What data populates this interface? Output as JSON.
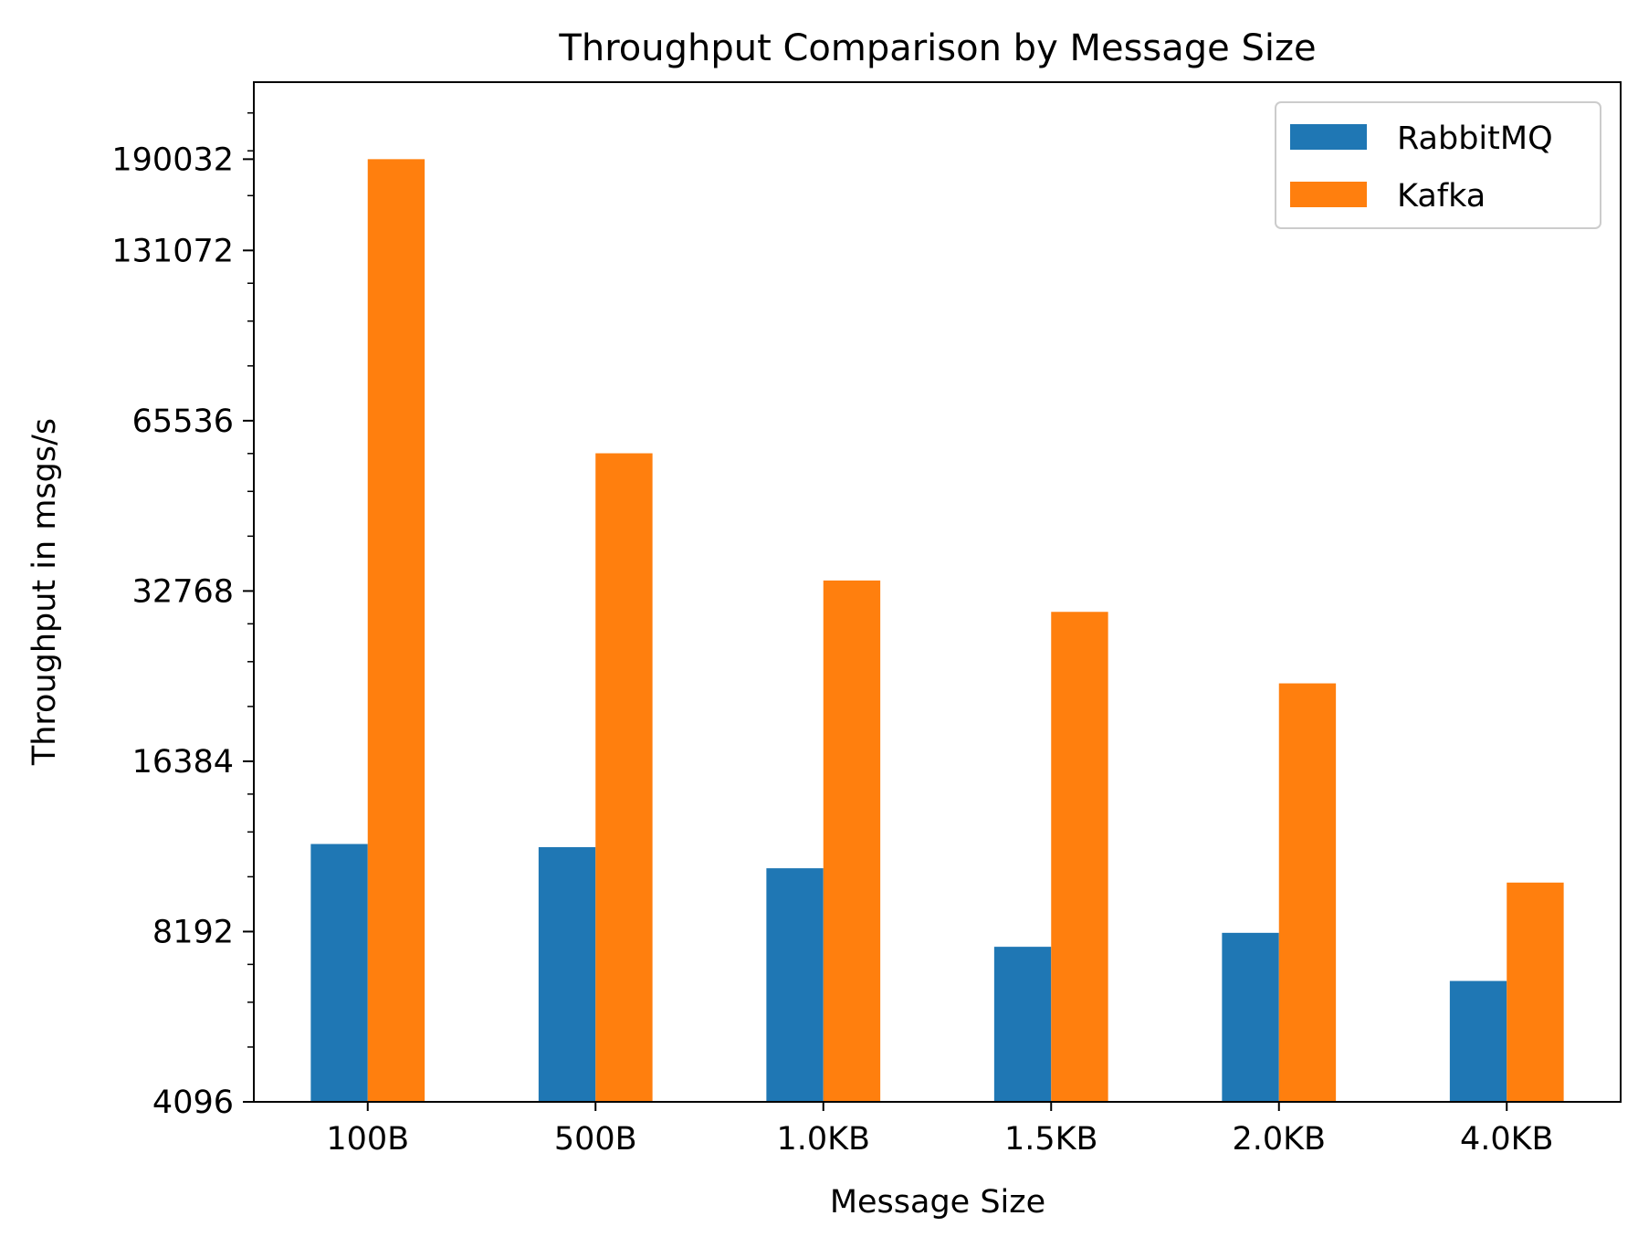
{
  "chart_data": {
    "type": "bar",
    "title": "Throughput Comparison by Message Size",
    "xlabel": "Message Size",
    "ylabel": "Throughput in msgs/s",
    "categories": [
      "100B",
      "500B",
      "1.0KB",
      "1.5KB",
      "2.0KB",
      "4.0KB"
    ],
    "series": [
      {
        "name": "RabbitMQ",
        "color": "#1f77b4",
        "values": [
          11700,
          11550,
          10600,
          7700,
          8150,
          6700
        ]
      },
      {
        "name": "Kafka",
        "color": "#ff7f0e",
        "values": [
          190032,
          57400,
          34200,
          30100,
          22500,
          10000
        ]
      }
    ],
    "yscale": "log2",
    "ylim": [
      4096,
      260000
    ],
    "yticks": [
      4096,
      8192,
      16384,
      32768,
      65536,
      131072,
      190032
    ],
    "ytick_labels": [
      "4096",
      "8192",
      "16384",
      "32768",
      "65536",
      "131072",
      "190032"
    ],
    "legend_position": "upper right",
    "grid": false
  }
}
